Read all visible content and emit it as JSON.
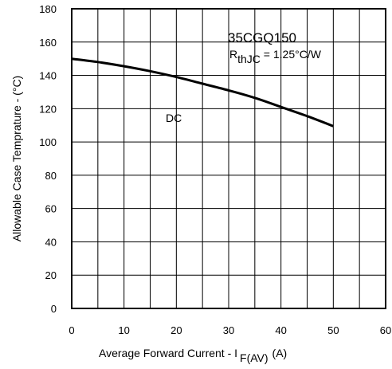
{
  "chart_data": {
    "type": "line",
    "title": "",
    "xlabel_main": "Average Forward Current - I",
    "xlabel_sub": "F(AV)",
    "xlabel_unit": "(A)",
    "ylabel": "Allowable Case Temprature - (°C)",
    "xlim": [
      0,
      60
    ],
    "ylim": [
      0,
      180
    ],
    "x_ticks": [
      0,
      10,
      20,
      30,
      40,
      50,
      60
    ],
    "x_tick_labels": [
      "0",
      "10",
      "20",
      "30",
      "40",
      "50",
      "60"
    ],
    "y_ticks": [
      0,
      20,
      40,
      60,
      80,
      100,
      120,
      140,
      160,
      180
    ],
    "y_tick_labels": [
      "0",
      "20",
      "40",
      "60",
      "80",
      "100",
      "120",
      "140",
      "160",
      "180"
    ],
    "x_grid_step": 5,
    "y_grid_step": 20,
    "grid": true,
    "series": [
      {
        "name": "DC",
        "x": [
          0,
          5,
          10,
          15,
          20,
          25,
          30,
          35,
          40,
          45,
          50
        ],
        "y": [
          150,
          148,
          145.5,
          142.5,
          139,
          135,
          131,
          126.5,
          121,
          115.5,
          109.5
        ]
      }
    ],
    "annotations": {
      "part_number": "35CGQ150",
      "rth_symbol": "R",
      "rth_subscript": "thJC",
      "rth_value": " =  1.25°C/W",
      "series_label": "DC"
    },
    "colors": {
      "line": "#000000",
      "grid": "#000000",
      "background": "#ffffff"
    }
  }
}
